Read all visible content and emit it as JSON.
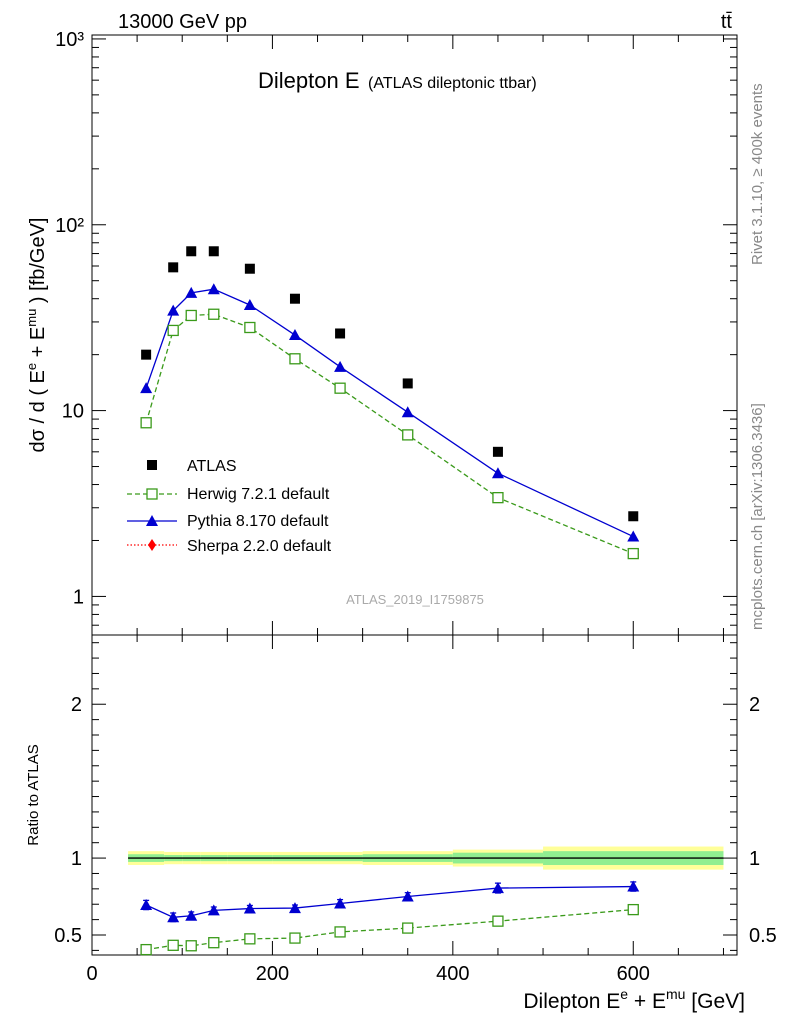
{
  "header": {
    "energy_label": "13000 GeV pp",
    "process_label": "tt̄"
  },
  "side_labels": {
    "rivet": "Rivet 3.1.10, ≥ 400k events",
    "mcplots": "mcplots.cern.ch [arXiv:1306.3436]"
  },
  "chart_data": [
    {
      "type": "scatter",
      "title": "Dilepton E",
      "subtitle": "(ATLAS dileptonic ttbar)",
      "analysis_id": "ATLAS_2019_I1759875",
      "ylabel": "dσ / d ( E^e + E^mu ) [fb/GeV]",
      "y_scale": "log",
      "xlim": [
        0,
        715
      ],
      "ylim": [
        0.62,
        1050
      ],
      "y_ticks": [
        {
          "value": 1,
          "label": "1"
        },
        {
          "value": 10,
          "label": "10"
        },
        {
          "value": 100,
          "label": "10²"
        },
        {
          "value": 1000,
          "label": "10³"
        }
      ],
      "legend_position": "lower-left",
      "series": [
        {
          "name": "ATLAS",
          "style": "black-filled-square",
          "color": "#000000",
          "x": [
            60,
            90,
            110,
            135,
            175,
            225,
            275,
            350,
            450,
            600
          ],
          "y": [
            20,
            59,
            72,
            72,
            58,
            40,
            26,
            14,
            6.0,
            2.7
          ]
        },
        {
          "name": "Herwig 7.2.1 default",
          "style": "green-dashed-open-square",
          "color": "#3a9a1a",
          "x": [
            60,
            90,
            110,
            135,
            175,
            225,
            275,
            350,
            450,
            600
          ],
          "y": [
            8.6,
            27,
            32.5,
            33,
            28,
            19,
            13.2,
            7.4,
            3.4,
            1.7
          ]
        },
        {
          "name": "Pythia 8.170 default",
          "style": "blue-solid-triangle",
          "color": "#0000d0",
          "x": [
            60,
            90,
            110,
            135,
            175,
            225,
            275,
            350,
            450,
            600
          ],
          "y": [
            13.2,
            34.5,
            43,
            45,
            37,
            25.5,
            17.2,
            9.8,
            4.6,
            2.1
          ]
        },
        {
          "name": "Sherpa 2.2.0 default",
          "style": "red-dotted-diamond",
          "color": "#ff0000",
          "x": [],
          "y": []
        }
      ]
    },
    {
      "type": "line",
      "ylabel": "Ratio to ATLAS",
      "xlabel": "Dilepton E^e + E^mu [GeV]",
      "xlim": [
        0,
        715
      ],
      "ylim": [
        0.37,
        2.45
      ],
      "x_ticks": [
        0,
        200,
        400,
        600
      ],
      "y_ticks": [
        0.5,
        1,
        2
      ],
      "reference_line": 1,
      "band_bins": [
        40,
        80,
        100,
        120,
        150,
        200,
        250,
        300,
        400,
        500,
        700
      ],
      "band_yellow_halfwidth": [
        0.045,
        0.04,
        0.04,
        0.04,
        0.04,
        0.04,
        0.04,
        0.045,
        0.055,
        0.075
      ],
      "band_green_halfwidth": [
        0.025,
        0.02,
        0.02,
        0.02,
        0.02,
        0.02,
        0.02,
        0.025,
        0.035,
        0.045
      ],
      "series": [
        {
          "name": "Herwig 7.2.1 default",
          "color": "#3a9a1a",
          "x": [
            60,
            90,
            110,
            135,
            175,
            225,
            275,
            350,
            450,
            600
          ],
          "y": [
            0.405,
            0.433,
            0.43,
            0.45,
            0.475,
            0.48,
            0.52,
            0.545,
            0.59,
            0.665
          ],
          "err": [
            0.01,
            0.01,
            0.01,
            0.01,
            0.01,
            0.01,
            0.01,
            0.01,
            0.01,
            0.01
          ]
        },
        {
          "name": "Pythia 8.170 default",
          "color": "#0000d0",
          "x": [
            60,
            90,
            110,
            135,
            175,
            225,
            275,
            350,
            450,
            600
          ],
          "y": [
            0.695,
            0.615,
            0.625,
            0.66,
            0.672,
            0.675,
            0.705,
            0.75,
            0.805,
            0.815
          ],
          "err": [
            0.03,
            0.028,
            0.025,
            0.022,
            0.02,
            0.02,
            0.025,
            0.025,
            0.032,
            0.03
          ]
        }
      ]
    }
  ]
}
